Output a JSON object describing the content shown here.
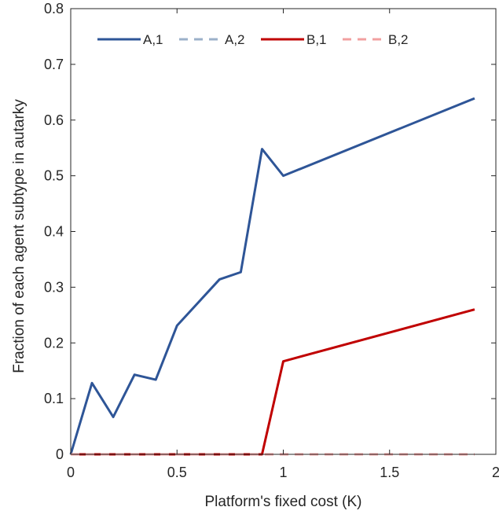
{
  "chart_data": {
    "type": "line",
    "title": "",
    "xlabel": "Platform's fixed cost (K)",
    "ylabel": "Fraction of each agent subtype in autarky",
    "xlim": [
      0,
      2
    ],
    "ylim": [
      0,
      0.8
    ],
    "xticks": [
      0,
      0.5,
      1,
      1.5,
      2
    ],
    "xtick_labels": [
      "0",
      "0.5",
      "1",
      "1.5",
      "2"
    ],
    "yticks": [
      0,
      0.1,
      0.2,
      0.3,
      0.4,
      0.5,
      0.6,
      0.7,
      0.8
    ],
    "ytick_labels": [
      "0",
      "0.1",
      "0.2",
      "0.3",
      "0.4",
      "0.5",
      "0.6",
      "0.7",
      "0.8"
    ],
    "grid": false,
    "legend": "top-left",
    "series": [
      {
        "name": "A,1",
        "color": "#2e5597",
        "style": "solid",
        "x": [
          0,
          0.1,
          0.2,
          0.3,
          0.4,
          0.5,
          0.7,
          0.8,
          0.9,
          1.0,
          1.9
        ],
        "y": [
          0,
          0.128,
          0.067,
          0.143,
          0.134,
          0.231,
          0.314,
          0.327,
          0.548,
          0.5,
          0.639
        ]
      },
      {
        "name": "A,2",
        "color": "#9bb0c9",
        "style": "dashed",
        "x": [
          0,
          1.9
        ],
        "y": [
          0,
          0
        ]
      },
      {
        "name": "B,1",
        "color": "#c00000",
        "style": "solid",
        "x": [
          0,
          0.9,
          1.0,
          1.9
        ],
        "y": [
          0,
          0,
          0.167,
          0.26
        ]
      },
      {
        "name": "B,2",
        "color": "#f2a0a0",
        "style": "dashed",
        "x": [
          0,
          1.9
        ],
        "y": [
          0,
          0
        ]
      }
    ]
  }
}
